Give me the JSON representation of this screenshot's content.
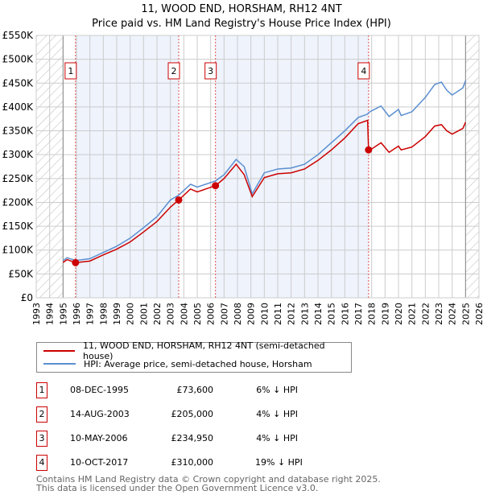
{
  "title": "11, WOOD END, HORSHAM, RH12 4NT",
  "subtitle": "Price paid vs. HM Land Registry's House Price Index (HPI)",
  "colors": {
    "price": "#cc0000",
    "hpi": "#5b8fd0",
    "band": "#eef3fc"
  },
  "chart_data": {
    "type": "line",
    "xlim": [
      1993,
      2026
    ],
    "ylim": [
      0,
      550000
    ],
    "yticks": [
      "£0",
      "£50K",
      "£100K",
      "£150K",
      "£200K",
      "£250K",
      "£300K",
      "£350K",
      "£400K",
      "£450K",
      "£500K",
      "£550K"
    ],
    "xticks": [
      "1993",
      "1994",
      "1995",
      "1996",
      "1997",
      "1998",
      "1999",
      "2000",
      "2001",
      "2002",
      "2003",
      "2004",
      "2005",
      "2006",
      "2007",
      "2008",
      "2009",
      "2010",
      "2011",
      "2012",
      "2013",
      "2014",
      "2015",
      "2016",
      "2017",
      "2018",
      "2019",
      "2020",
      "2021",
      "2022",
      "2023",
      "2024",
      "2025",
      "2026"
    ],
    "series": [
      {
        "name": "11, WOOD END, HORSHAM, RH12 4NT (semi-detached house)",
        "x": [
          1995,
          1995.3,
          1995.93,
          1997,
          1998,
          1999,
          2000,
          2001,
          2002,
          2003,
          2003.62,
          2004.5,
          2005,
          2006.36,
          2007,
          2007.9,
          2008.5,
          2009.1,
          2010,
          2011,
          2012,
          2013,
          2014,
          2015,
          2016,
          2017,
          2017.7,
          2017.77,
          2018,
          2018.7,
          2019.3,
          2020,
          2020.2,
          2021,
          2022,
          2022.7,
          2023.2,
          2023.6,
          2024,
          2024.8,
          2025
        ],
        "y": [
          74000,
          80000,
          73600,
          77000,
          90000,
          102000,
          117000,
          138000,
          160000,
          190000,
          205000,
          228000,
          222000,
          234950,
          250000,
          280000,
          258000,
          212000,
          252000,
          260000,
          262000,
          270000,
          288000,
          310000,
          335000,
          365000,
          372000,
          310000,
          312000,
          325000,
          305000,
          318000,
          310000,
          316000,
          338000,
          360000,
          363000,
          350000,
          343000,
          355000,
          368000
        ]
      },
      {
        "name": "HPI: Average price, semi-detached house, Horsham",
        "x": [
          1995,
          1995.3,
          1995.93,
          1997,
          1998,
          1999,
          2000,
          2001,
          2002,
          2003,
          2003.62,
          2004.5,
          2005,
          2006.36,
          2007,
          2007.9,
          2008.5,
          2009.1,
          2010,
          2011,
          2012,
          2013,
          2014,
          2015,
          2016,
          2017,
          2017.7,
          2017.77,
          2018,
          2018.7,
          2019.3,
          2020,
          2020.2,
          2021,
          2022,
          2022.7,
          2023.2,
          2023.6,
          2024,
          2024.8,
          2025
        ],
        "y": [
          78000,
          84000,
          78000,
          82000,
          95000,
          108000,
          125000,
          147000,
          170000,
          205000,
          215000,
          238000,
          232000,
          245000,
          258000,
          290000,
          275000,
          218000,
          262000,
          270000,
          272000,
          280000,
          300000,
          325000,
          350000,
          378000,
          385000,
          388000,
          392000,
          402000,
          380000,
          395000,
          382000,
          390000,
          420000,
          447000,
          452000,
          435000,
          425000,
          440000,
          455000
        ]
      }
    ],
    "sales": [
      {
        "n": "1",
        "x": 1995.93,
        "y": 73600
      },
      {
        "n": "2",
        "x": 2003.62,
        "y": 205000
      },
      {
        "n": "3",
        "x": 2006.36,
        "y": 234950
      },
      {
        "n": "4",
        "x": 2017.77,
        "y": 310000
      }
    ],
    "data_range": [
      1995,
      2025
    ]
  },
  "table": [
    {
      "n": "1",
      "date": "08-DEC-1995",
      "price": "£73,600",
      "hpi": "6% ↓ HPI"
    },
    {
      "n": "2",
      "date": "14-AUG-2003",
      "price": "£205,000",
      "hpi": "4% ↓ HPI"
    },
    {
      "n": "3",
      "date": "10-MAY-2006",
      "price": "£234,950",
      "hpi": "4% ↓ HPI"
    },
    {
      "n": "4",
      "date": "10-OCT-2017",
      "price": "£310,000",
      "hpi": "19% ↓ HPI"
    }
  ],
  "footer": [
    "Contains HM Land Registry data © Crown copyright and database right 2025.",
    "This data is licensed under the Open Government Licence v3.0."
  ]
}
